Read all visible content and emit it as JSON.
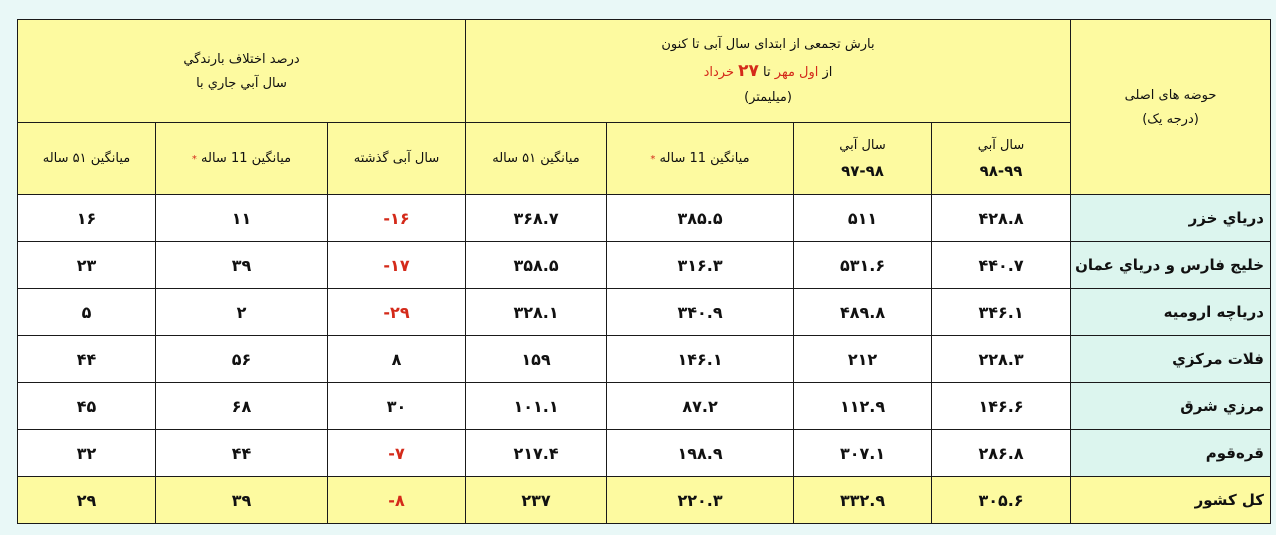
{
  "header": {
    "basin_title": "حوضه های اصلی",
    "basin_subtitle": "(درجه یک)",
    "precip_title": "بارش تجمعی از ابتدای سال آبی تا کنون",
    "precip_range": {
      "from_prefix": "از",
      "from": "اول مهر",
      "to_prefix": "تا",
      "day": "۲۷",
      "month": "خرداد"
    },
    "precip_unit": "(میلیمتر)",
    "diff_title": "درصد اختلاف بارندگي",
    "diff_subtitle": "سال آبي جاري با",
    "columns": [
      {
        "label": "سال آبي",
        "sub": "۹۸-۹۹"
      },
      {
        "label": "سال آبي",
        "sub": "۹۷-۹۸"
      },
      {
        "label": "میانگین 11 ساله",
        "star": "*"
      },
      {
        "label": "میانگین ۵۱ ساله"
      },
      {
        "label": "سال آبی گذشته"
      },
      {
        "label": "میانگین 11 ساله",
        "star": "*"
      },
      {
        "label": "میانگین ۵۱ ساله"
      }
    ]
  },
  "rows": [
    {
      "region": "درياي خزر",
      "values": [
        "۴۲۸.۸",
        "۵۱۱",
        "۳۸۵.۵",
        "۳۶۸.۷",
        "-۱۶",
        "۱۱",
        "۱۶"
      ]
    },
    {
      "region": "خليج فارس و درياي عمان",
      "values": [
        "۴۴۰.۷",
        "۵۳۱.۶",
        "۳۱۶.۳",
        "۳۵۸.۵",
        "-۱۷",
        "۳۹",
        "۲۳"
      ]
    },
    {
      "region": "درياچه اروميه",
      "values": [
        "۳۴۶.۱",
        "۴۸۹.۸",
        "۳۴۰.۹",
        "۳۲۸.۱",
        "-۲۹",
        "۲",
        "۵"
      ]
    },
    {
      "region": "فلات مركزي",
      "values": [
        "۲۲۸.۳",
        "۲۱۲",
        "۱۴۶.۱",
        "۱۵۹",
        "۸",
        "۵۶",
        "۴۴"
      ]
    },
    {
      "region": "مرزي شرق",
      "values": [
        "۱۴۶.۶",
        "۱۱۲.۹",
        "۸۷.۲",
        "۱۰۱.۱",
        "۳۰",
        "۶۸",
        "۴۵"
      ]
    },
    {
      "region": "قره‌قوم",
      "values": [
        "۲۸۶.۸",
        "۳۰۷.۱",
        "۱۹۸.۹",
        "۲۱۷.۴",
        "-۷",
        "۴۴",
        "۳۲"
      ]
    },
    {
      "region": "کل کشور",
      "values": [
        "۳۰۵.۶",
        "۳۳۲.۹",
        "۲۲۰.۳",
        "۲۳۷",
        "-۸",
        "۳۹",
        "۲۹"
      ],
      "total": true
    }
  ],
  "colors": {
    "header_bg": "#fdfaa0",
    "region_bg": "#dcf5ee",
    "negative": "#d42a1a",
    "page_bg": "#e9f8f7"
  }
}
